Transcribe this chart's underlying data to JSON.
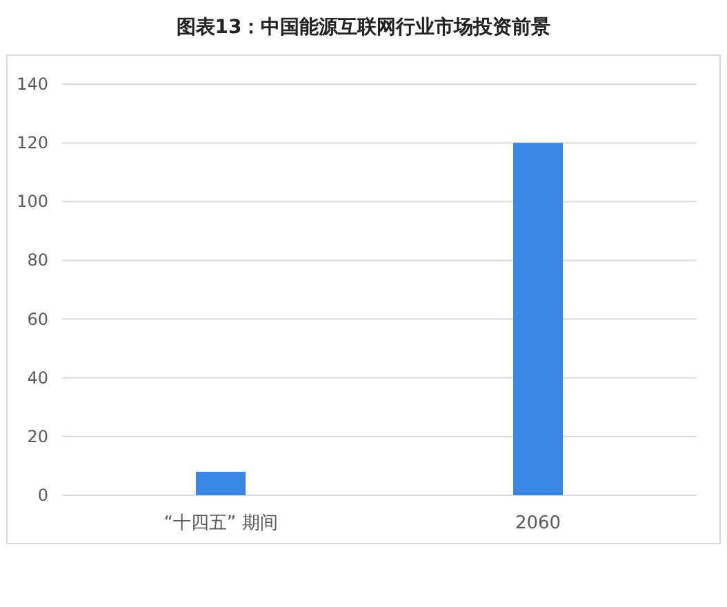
{
  "chart_data": {
    "type": "bar",
    "title": "图表13：中国能源互联网行业市场投资前景",
    "categories": [
      "“十四五” 期间",
      "2060"
    ],
    "values": [
      8,
      120
    ],
    "color": "#3a86e6",
    "ylim": [
      0,
      140
    ],
    "yticks": [
      0,
      20,
      40,
      60,
      80,
      100,
      120,
      140
    ],
    "grid": "y"
  }
}
